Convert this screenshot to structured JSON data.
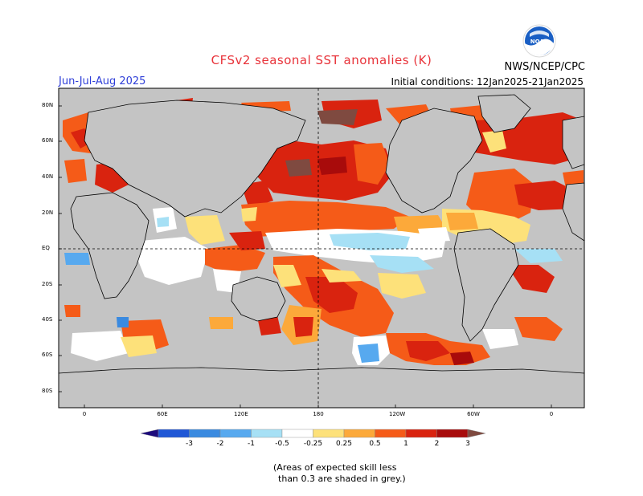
{
  "header": {
    "title": "CFSv2 seasonal SST anomalies (K)",
    "season": "Jun-Jul-Aug 2025",
    "initial_conditions": "Initial conditions: 12Jan2025-21Jan2025",
    "agency": "NWS/NCEP/CPC",
    "logo_text": "NOAA"
  },
  "map": {
    "latitude_labels": [
      "80N",
      "60N",
      "40N",
      "20N",
      "EQ",
      "20S",
      "40S",
      "60S",
      "80S"
    ],
    "longitude_labels": [
      "0",
      "60E",
      "120E",
      "180",
      "120W",
      "60W",
      "0"
    ]
  },
  "colorbar": {
    "ticks": [
      "-3",
      "-2",
      "-1",
      "-0.5",
      "-0.25",
      "0.25",
      "0.5",
      "1",
      "2",
      "3"
    ],
    "colors": [
      "#1d0b7c",
      "#1f57d6",
      "#3a8ae0",
      "#57a9ef",
      "#a6e0f5",
      "#ffffff",
      "#fde17a",
      "#fca93a",
      "#f55b18",
      "#d9230f",
      "#a80b0b",
      "#7f4a40"
    ]
  },
  "note": {
    "line1": "(Areas of expected skill less",
    "line2": "than 0.3 are shaded in grey.)"
  },
  "colors": {
    "title": "#e8333a",
    "season": "#2e3ed8",
    "skill_mask_grey": "#c4c4c4",
    "land": "#c4c4c4"
  }
}
